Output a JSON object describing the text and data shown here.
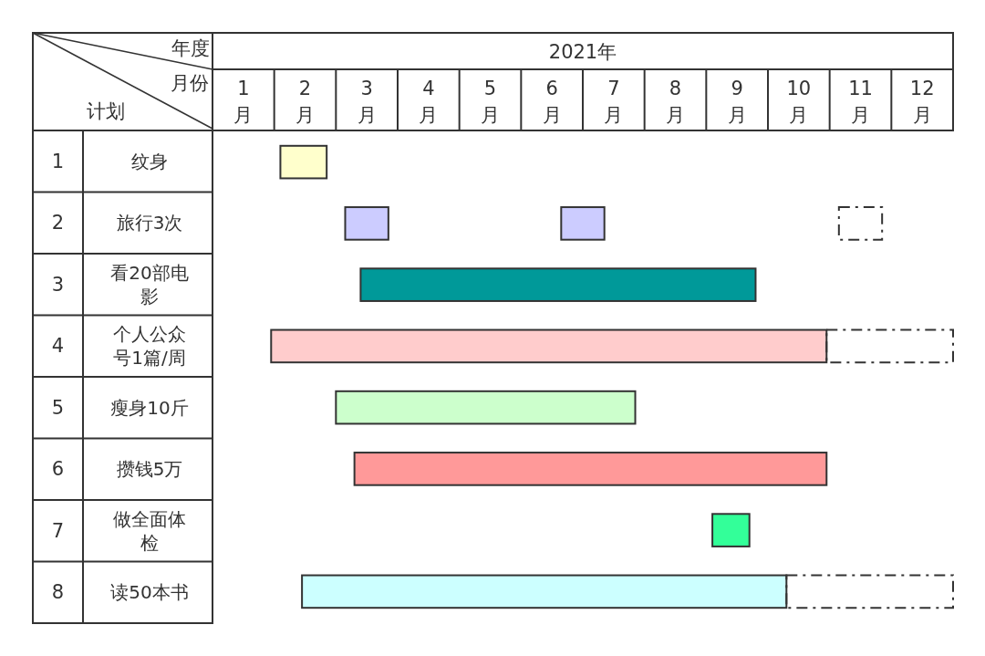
{
  "chart_data": {
    "type": "bar",
    "orientation": "horizontal",
    "xlabel": "2021年",
    "categories": [
      "纹身",
      "旅行3次",
      "看20部电影",
      "个人公众号1篇/周",
      "瘦身10斤",
      "攒钱5万",
      "做全面体检",
      "读50本书"
    ],
    "annotations": [
      "年度",
      "月份",
      "计划",
      "1",
      "2",
      "3",
      "4",
      "5",
      "6",
      "7",
      "8"
    ],
    "xlim": [
      0,
      12
    ],
    "xticks": [
      {
        "value": 0.5,
        "label": "1月"
      },
      {
        "value": 1.5,
        "label": "2月"
      },
      {
        "value": 2.5,
        "label": "3月"
      },
      {
        "value": 3.5,
        "label": "4月"
      },
      {
        "value": 4.5,
        "label": "5月"
      },
      {
        "value": 5.5,
        "label": "6月"
      },
      {
        "value": 6.5,
        "label": "7月"
      },
      {
        "value": 7.5,
        "label": "8月"
      },
      {
        "value": 8.5,
        "label": "9月"
      },
      {
        "value": 9.5,
        "label": "10月"
      },
      {
        "value": 10.5,
        "label": "11月"
      },
      {
        "value": 11.5,
        "label": "12月"
      }
    ],
    "series": [
      {
        "colors": [
          "#ffffcc",
          "#ccccff",
          "#009999",
          "#ffcccc",
          "#ccffcc",
          "#ff9999",
          "#33ff99",
          "#ccffff"
        ],
        "base": [
          1.1,
          2.15,
          2.4,
          0.95,
          2,
          2.3,
          8.1,
          1.45
        ],
        "values": [
          0.75,
          0.7,
          6.4,
          9.0,
          4.85,
          7.65,
          0.6,
          7.85
        ]
      },
      {
        "color": "#ccccff",
        "base": [
          null,
          5.65,
          null,
          null,
          null,
          null,
          null,
          null
        ],
        "values": [
          null,
          0.7,
          null,
          null,
          null,
          null,
          null,
          null
        ]
      },
      {
        "color": "#333333",
        "line_style": "dashed",
        "base": [
          null,
          10.15,
          null,
          9.95,
          null,
          null,
          null,
          9.3
        ],
        "values": [
          null,
          0.7,
          null,
          2.05,
          null,
          null,
          null,
          2.7
        ]
      }
    ]
  }
}
